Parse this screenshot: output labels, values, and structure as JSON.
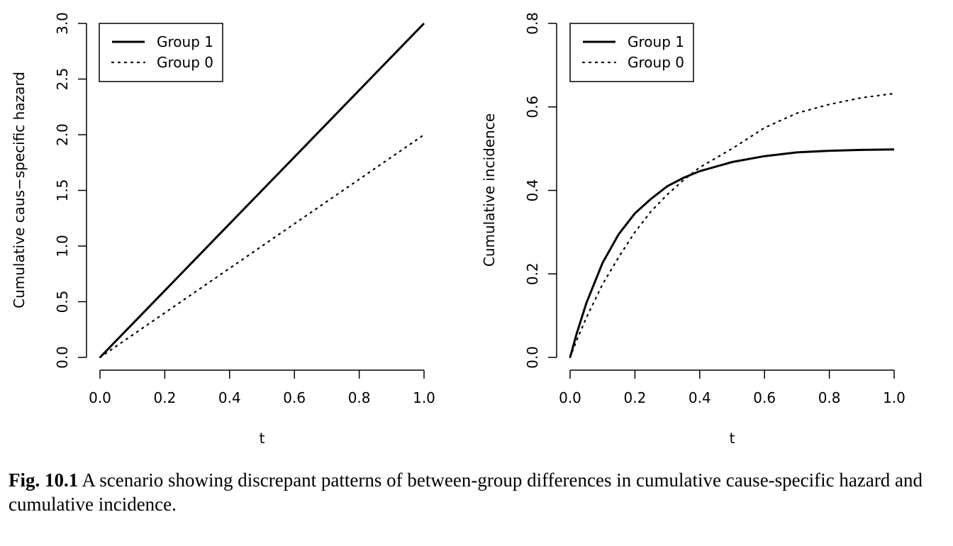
{
  "chart_data": [
    {
      "type": "line",
      "title": "",
      "xlabel": "t",
      "ylabel": "Cumulative caus−specific hazard",
      "xlim": [
        0,
        1
      ],
      "ylim": [
        0,
        3
      ],
      "xticks": [
        "0.0",
        "0.2",
        "0.4",
        "0.6",
        "0.8",
        "1.0"
      ],
      "yticks": [
        "0.0",
        "0.5",
        "1.0",
        "1.5",
        "2.0",
        "2.5",
        "3.0"
      ],
      "legend": "top-left",
      "series": [
        {
          "name": "Group 1",
          "style": "solid",
          "x": [
            0,
            0.1,
            0.2,
            0.3,
            0.4,
            0.5,
            0.6,
            0.7,
            0.8,
            0.9,
            1.0
          ],
          "y": [
            0,
            0.3,
            0.6,
            0.9,
            1.2,
            1.5,
            1.8,
            2.1,
            2.4,
            2.7,
            3.0
          ]
        },
        {
          "name": "Group 0",
          "style": "dotted",
          "x": [
            0,
            0.1,
            0.2,
            0.3,
            0.4,
            0.5,
            0.6,
            0.7,
            0.8,
            0.9,
            1.0
          ],
          "y": [
            0,
            0.2,
            0.4,
            0.6,
            0.8,
            1.0,
            1.2,
            1.4,
            1.6,
            1.8,
            2.0
          ]
        }
      ]
    },
    {
      "type": "line",
      "title": "",
      "xlabel": "t",
      "ylabel": "Cumulative incidence",
      "xlim": [
        0,
        1
      ],
      "ylim": [
        0,
        0.8
      ],
      "xticks": [
        "0.0",
        "0.2",
        "0.4",
        "0.6",
        "0.8",
        "1.0"
      ],
      "yticks": [
        "0.0",
        "0.2",
        "0.4",
        "0.6",
        "0.8"
      ],
      "legend": "top-left",
      "series": [
        {
          "name": "Group 1",
          "style": "solid",
          "x": [
            0,
            0.02,
            0.05,
            0.1,
            0.15,
            0.2,
            0.25,
            0.3,
            0.35,
            0.4,
            0.5,
            0.6,
            0.7,
            0.8,
            0.9,
            1.0
          ],
          "y": [
            0,
            0.056,
            0.13,
            0.226,
            0.295,
            0.345,
            0.38,
            0.41,
            0.43,
            0.446,
            0.468,
            0.482,
            0.491,
            0.495,
            0.497,
            0.498
          ]
        },
        {
          "name": "Group 0",
          "style": "dotted",
          "x": [
            0,
            0.02,
            0.05,
            0.1,
            0.15,
            0.2,
            0.25,
            0.3,
            0.35,
            0.4,
            0.5,
            0.6,
            0.7,
            0.8,
            0.9,
            1.0
          ],
          "y": [
            0,
            0.04,
            0.095,
            0.175,
            0.24,
            0.3,
            0.35,
            0.39,
            0.425,
            0.455,
            0.5,
            0.55,
            0.585,
            0.606,
            0.622,
            0.632
          ]
        }
      ]
    }
  ],
  "caption": {
    "label": "Fig. 10.1",
    "text": " A scenario showing discrepant patterns of between-group differences in cumulative cause-specific hazard and cumulative incidence."
  }
}
